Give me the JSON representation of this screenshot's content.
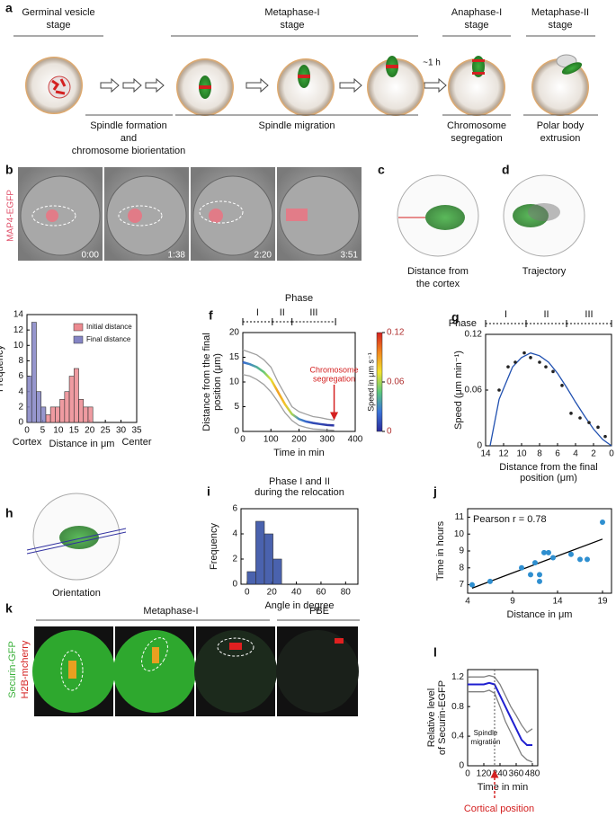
{
  "panels": {
    "letters": [
      "a",
      "b",
      "c",
      "d",
      "h",
      "k"
    ],
    "a": {
      "top": [
        [
          "Germinal vesicle",
          "stage"
        ],
        [
          "Metaphase-I",
          "stage"
        ],
        [
          "Anaphase-I",
          "stage"
        ],
        [
          "Metaphase-II",
          "stage"
        ]
      ],
      "bottom": [
        [
          "Spindle formation",
          "and",
          "chromosome biorientation"
        ],
        [
          "Spindle migration"
        ],
        [
          "Chromosome",
          "segregation"
        ],
        [
          "Polar body",
          "extrusion"
        ]
      ],
      "interval": "~1 h"
    },
    "b": {
      "marker": "MAP4-EGFP",
      "times": [
        "0:00",
        "1:38",
        "2:20",
        "3:51"
      ]
    },
    "c": {
      "caption": [
        "Distance from",
        "the cortex"
      ]
    },
    "d": {
      "caption": [
        "Trajectory"
      ]
    },
    "h": {
      "caption": [
        "Orientation"
      ]
    },
    "k": {
      "headers": [
        "Metaphase-I",
        "PBE"
      ],
      "channels": [
        "Securin-GFP",
        "H2B-mcherry"
      ]
    }
  },
  "chart_data": [
    {
      "panel": "e",
      "type": "histogram",
      "xlabel": "Distance in μm",
      "ylabel": "Frequency",
      "x_end_labels": [
        "Cortex",
        "Center"
      ],
      "xlim": [
        0,
        35
      ],
      "xticks": [
        0,
        5,
        10,
        15,
        20,
        25,
        30,
        35
      ],
      "ylim": [
        0,
        14
      ],
      "yticks": [
        0,
        2,
        4,
        6,
        8,
        10,
        12,
        14
      ],
      "bins": [
        0,
        1.5,
        3,
        4.5,
        6,
        7.5,
        9,
        10.5,
        12,
        13.5,
        15,
        16.5,
        18,
        19.5,
        21
      ],
      "legend": "upper right",
      "series": [
        {
          "name": "Initial distance",
          "color": "#ec8a90",
          "values": [
            0,
            0,
            0,
            0,
            1,
            2,
            2,
            3,
            4,
            6,
            7,
            3,
            2,
            2
          ]
        },
        {
          "name": "Final distance",
          "color": "#8484c4",
          "values": [
            6,
            13,
            4,
            2,
            0,
            0,
            0,
            0,
            0,
            0,
            0,
            0,
            0,
            0
          ]
        }
      ]
    },
    {
      "panel": "f",
      "type": "line",
      "xlabel": "Time in min",
      "ylabel": [
        "Distance from the final",
        "position (μm)"
      ],
      "phase_title": "Phase",
      "phases": [
        "I",
        "II",
        "III"
      ],
      "phase_bounds": [
        0,
        105,
        175,
        330
      ],
      "annotation": [
        "Chromosome",
        "segregation"
      ],
      "xlim": [
        0,
        400
      ],
      "xticks": [
        0,
        100,
        200,
        300,
        400
      ],
      "ylim": [
        0,
        20
      ],
      "yticks": [
        0,
        5,
        10,
        15,
        20
      ],
      "colorbar": {
        "label": "Speed in μm s⁻¹",
        "lim": [
          0,
          0.12
        ],
        "ticks": [
          0,
          0.06,
          0.12
        ],
        "colormap": [
          "#2a2a9a",
          "#3b74d8",
          "#5cc87c",
          "#f2e22e",
          "#f2881e",
          "#d42020"
        ]
      },
      "x": [
        0,
        25,
        50,
        75,
        100,
        125,
        150,
        175,
        200,
        225,
        250,
        275,
        300,
        325
      ],
      "series": [
        {
          "color": "#a0a0a0",
          "values": [
            16.5,
            16,
            15.5,
            14.5,
            13,
            10,
            7.5,
            5,
            4,
            3.5,
            3,
            2.8,
            2.5,
            2.3
          ]
        },
        {
          "color": "#a0a0a0",
          "values": [
            11.5,
            11.2,
            10.5,
            9.5,
            8,
            6,
            3.8,
            2.2,
            1.2,
            0.8,
            0.5,
            0.4,
            0.3,
            0.2
          ]
        },
        {
          "color": "#606060",
          "values": [
            14,
            13.6,
            13,
            12,
            10.5,
            8,
            5.5,
            3.5,
            2.5,
            2,
            1.7,
            1.5,
            1.3,
            1.2
          ],
          "speed": [
            0.02,
            0.03,
            0.04,
            0.05,
            0.07,
            0.09,
            0.08,
            0.06,
            0.03,
            0.02,
            0.01,
            0.01,
            0.005,
            0.005
          ]
        }
      ]
    },
    {
      "panel": "g",
      "type": "scatter",
      "xlabel": [
        "Distance from the final",
        "position (μm)"
      ],
      "ylabel": "Speed (μm min⁻¹)",
      "phase_title": "Phase",
      "phases": [
        "I",
        "II",
        "III"
      ],
      "phase_bounds": [
        14,
        9.5,
        5,
        0
      ],
      "xlim": [
        14,
        0
      ],
      "xticks": [
        14,
        12,
        10,
        8,
        6,
        4,
        2,
        0
      ],
      "ylim": [
        0,
        0.12
      ],
      "yticks": [
        0,
        0.06,
        0.12
      ],
      "points": {
        "color": "#222222",
        "x": [
          12.5,
          11.5,
          10.7,
          9.7,
          9,
          8,
          7.3,
          6.5,
          5.5,
          4.5,
          3.5,
          2.5,
          1.5,
          0.7
        ],
        "y": [
          0.06,
          0.085,
          0.09,
          0.1,
          0.095,
          0.09,
          0.085,
          0.08,
          0.065,
          0.035,
          0.03,
          0.025,
          0.02,
          0.01
        ]
      },
      "fit": {
        "color": "#2050b0",
        "x": [
          13.5,
          12.5,
          11,
          10,
          9,
          8,
          7,
          6,
          5,
          4,
          3,
          2,
          1,
          0
        ],
        "y": [
          0,
          0.05,
          0.085,
          0.095,
          0.1,
          0.097,
          0.09,
          0.078,
          0.063,
          0.047,
          0.032,
          0.018,
          0.007,
          0
        ]
      }
    },
    {
      "panel": "i",
      "type": "histogram",
      "title": [
        "Phase I and II",
        "during the relocation"
      ],
      "xlabel": "Angle in degree",
      "ylabel": "Frequency",
      "xlim": [
        -5,
        90
      ],
      "xticks": [
        0,
        20,
        40,
        60,
        80
      ],
      "ylim": [
        0,
        6
      ],
      "yticks": [
        0,
        2,
        4,
        6
      ],
      "bins": [
        0,
        7,
        14,
        21,
        28
      ],
      "series": [
        {
          "color": "#2a46a0",
          "values": [
            1,
            5,
            4,
            2
          ]
        }
      ]
    },
    {
      "panel": "j",
      "type": "scatter",
      "xlabel": "Distance in μm",
      "ylabel": "Time in hours",
      "annotation": [
        "Pearson r = 0.78"
      ],
      "xlim": [
        4,
        20
      ],
      "xticks": [
        4,
        9,
        14,
        19
      ],
      "ylim": [
        6.5,
        11.5
      ],
      "yticks": [
        7,
        8,
        9,
        10,
        11
      ],
      "points": {
        "color": "#2f8fd0",
        "x": [
          4.5,
          6.5,
          10,
          11,
          11.5,
          12,
          12,
          12.5,
          13,
          13.5,
          15.5,
          16.5,
          17.3,
          19
        ],
        "y": [
          7,
          7.2,
          8,
          7.6,
          8.3,
          7.6,
          7.2,
          8.9,
          8.9,
          8.6,
          8.8,
          8.5,
          8.5,
          10.7
        ]
      },
      "fit": {
        "color": "#000000",
        "x": [
          4.5,
          19
        ],
        "y": [
          6.8,
          9.7
        ]
      }
    },
    {
      "panel": "l",
      "type": "line",
      "xlabel": "Time in min",
      "ylabel": [
        "Relative level",
        "of Securin-EGFP"
      ],
      "annotation": [
        "Spindle",
        "migration"
      ],
      "vline_label": "Cortical position",
      "vline_x": 200,
      "xlim": [
        0,
        520
      ],
      "xticks": [
        0,
        120,
        240,
        360,
        480
      ],
      "ylim": [
        0,
        1.3
      ],
      "yticks": [
        0,
        0.4,
        0.8,
        1.2
      ],
      "x": [
        0,
        40,
        80,
        120,
        160,
        200,
        240,
        280,
        320,
        360,
        400,
        440,
        480
      ],
      "series": [
        {
          "color": "#808080",
          "values": [
            1.2,
            1.2,
            1.2,
            1.2,
            1.22,
            1.2,
            1.1,
            0.95,
            0.8,
            0.68,
            0.55,
            0.45,
            0.5
          ]
        },
        {
          "color": "#808080",
          "values": [
            1.0,
            1.0,
            1.0,
            1.0,
            1.02,
            0.98,
            0.8,
            0.6,
            0.45,
            0.3,
            0.15,
            0.08,
            0.05
          ]
        },
        {
          "color": "#1f1fd0",
          "values": [
            1.1,
            1.1,
            1.1,
            1.1,
            1.12,
            1.1,
            0.95,
            0.8,
            0.65,
            0.5,
            0.35,
            0.28,
            0.28
          ]
        }
      ]
    }
  ]
}
